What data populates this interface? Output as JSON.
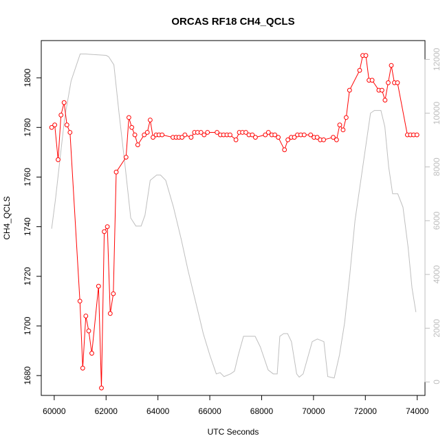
{
  "chart_data": {
    "type": "line",
    "title": "ORCAS RF18 CH4_QCLS",
    "xlabel": "UTC Seconds",
    "ylabel": "CH4_QCLS",
    "xlim": [
      59500,
      74300
    ],
    "ylim": [
      1672,
      1815
    ],
    "y2lim": [
      -500,
      12700
    ],
    "x_ticks": [
      60000,
      62000,
      64000,
      66000,
      68000,
      70000,
      72000,
      74000
    ],
    "x_tick_labels": [
      "60000",
      "62000",
      "64000",
      "66000",
      "68000",
      "70000",
      "72000",
      "74000"
    ],
    "y_ticks": [
      1680,
      1700,
      1720,
      1740,
      1760,
      1780,
      1800
    ],
    "y_tick_labels": [
      "1680",
      "1700",
      "1720",
      "1740",
      "1760",
      "1780",
      "1800"
    ],
    "y2_ticks": [
      0,
      2000,
      4000,
      6000,
      8000,
      10000,
      12000
    ],
    "y2_tick_labels": [
      "0",
      "2000",
      "4000",
      "6000",
      "8000",
      "10000",
      "12000"
    ],
    "grid": false,
    "colors": {
      "ch4": "#ff0000",
      "altitude": "#bebebe",
      "axis": "#000000"
    },
    "series": [
      {
        "axis": "left",
        "style": "line+points",
        "color": "#ff0000",
        "x": [
          59900,
          60020,
          60150,
          60260,
          60380,
          60490,
          60610,
          60990,
          61100,
          61220,
          61330,
          61450,
          61710,
          61820,
          61930,
          62050,
          62160,
          62280,
          62390,
          62770,
          62880,
          62990,
          63110,
          63220,
          63470,
          63590,
          63700,
          63810,
          63930,
          64040,
          64160,
          64580,
          64700,
          64810,
          64930,
          65040,
          65280,
          65410,
          65530,
          65660,
          65780,
          65910,
          66280,
          66410,
          66530,
          66660,
          66780,
          67010,
          67140,
          67260,
          67390,
          67510,
          67640,
          67760,
          68140,
          68260,
          68390,
          68510,
          68640,
          68880,
          69010,
          69140,
          69260,
          69380,
          69510,
          69640,
          69890,
          70020,
          70140,
          70260,
          70390,
          70760,
          70890,
          71010,
          71140,
          71260,
          71390,
          71780,
          71900,
          72020,
          72140,
          72260,
          72520,
          72640,
          72760,
          72880,
          73000,
          73120,
          73240,
          73620,
          73740,
          73860,
          73990
        ],
        "y": [
          1780,
          1781,
          1767,
          1785,
          1790,
          1781,
          1778,
          1710,
          1683,
          1704,
          1698,
          1689,
          1716,
          1675,
          1738,
          1740,
          1705,
          1713,
          1762,
          1768,
          1784,
          1780,
          1777,
          1773,
          1777,
          1778,
          1783,
          1776,
          1777,
          1777,
          1777,
          1776,
          1776,
          1776,
          1776,
          1777,
          1776,
          1778,
          1778,
          1778,
          1777,
          1778,
          1778,
          1777,
          1777,
          1777,
          1777,
          1775,
          1778,
          1778,
          1778,
          1777,
          1777,
          1776,
          1777,
          1778,
          1777,
          1777,
          1776,
          1771,
          1775,
          1776,
          1776,
          1777,
          1777,
          1777,
          1777,
          1776,
          1776,
          1775,
          1775,
          1776,
          1775,
          1781,
          1779,
          1784,
          1795,
          1803,
          1809,
          1809,
          1799,
          1799,
          1795,
          1795,
          1791,
          1798,
          1805,
          1798,
          1798,
          1777,
          1777,
          1777,
          1777
        ]
      },
      {
        "axis": "right",
        "style": "line",
        "color": "#bebebe",
        "x": [
          59900,
          60050,
          60200,
          60400,
          60650,
          61000,
          61200,
          62000,
          62100,
          62300,
          62500,
          62750,
          62950,
          63150,
          63350,
          63500,
          63700,
          63950,
          64100,
          64300,
          64600,
          64900,
          65150,
          65400,
          65600,
          65750,
          66000,
          66250,
          66400,
          66550,
          66800,
          66950,
          67100,
          67300,
          67550,
          67750,
          67950,
          68250,
          68450,
          68600,
          68700,
          68850,
          69000,
          69150,
          69350,
          69450,
          69600,
          69950,
          70150,
          70400,
          70550,
          70800,
          71000,
          71200,
          71400,
          71600,
          71900,
          72200,
          72350,
          72450,
          72600,
          72750,
          72900,
          73050,
          73250,
          73450,
          73650,
          73800,
          73950
        ],
        "y": [
          5700,
          6800,
          8100,
          9800,
          11200,
          12200,
          12200,
          12150,
          12100,
          11800,
          10000,
          7900,
          6100,
          5800,
          5800,
          6200,
          7500,
          7700,
          7700,
          7500,
          6500,
          5300,
          4200,
          3200,
          2400,
          1800,
          1000,
          300,
          350,
          200,
          300,
          400,
          1000,
          1700,
          1700,
          1700,
          1300,
          450,
          300,
          300,
          1700,
          1800,
          1800,
          1500,
          300,
          180,
          300,
          1500,
          1600,
          1500,
          200,
          150,
          1000,
          2200,
          4000,
          6000,
          8000,
          10000,
          10100,
          10100,
          10100,
          9500,
          8000,
          7000,
          7000,
          6500,
          5000,
          3500,
          2600
        ]
      }
    ]
  }
}
